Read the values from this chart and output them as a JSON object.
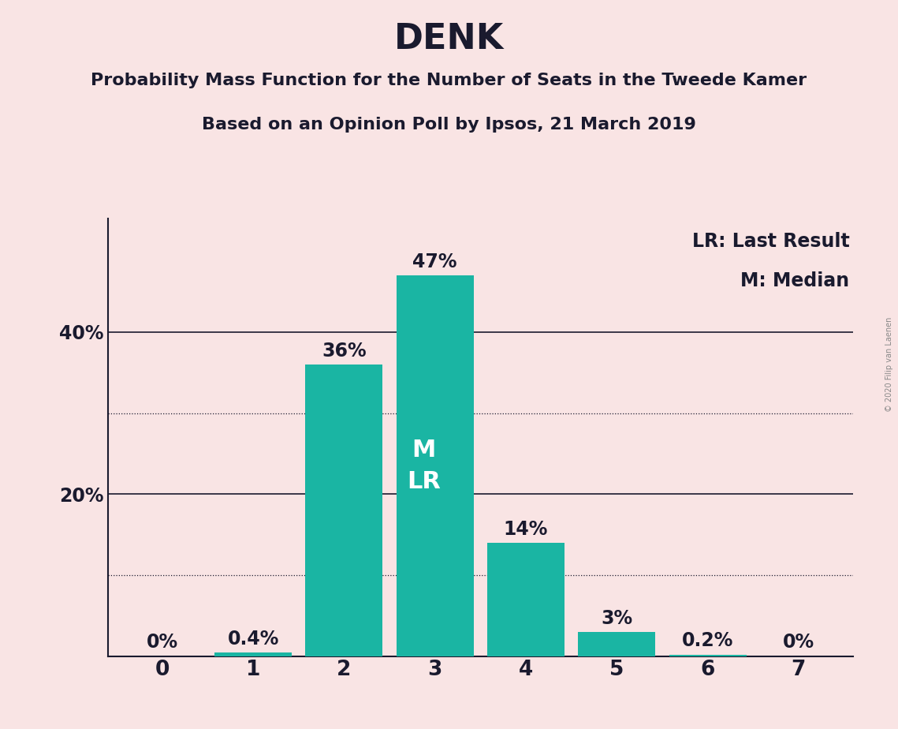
{
  "title": "DENK",
  "subtitle1": "Probability Mass Function for the Number of Seats in the Tweede Kamer",
  "subtitle2": "Based on an Opinion Poll by Ipsos, 21 March 2019",
  "categories": [
    0,
    1,
    2,
    3,
    4,
    5,
    6,
    7
  ],
  "values": [
    0.0,
    0.4,
    36.0,
    47.0,
    14.0,
    3.0,
    0.2,
    0.0
  ],
  "bar_color": "#1ab5a3",
  "background_color": "#f9e4e4",
  "bar_labels": [
    "0%",
    "0.4%",
    "36%",
    "47%",
    "14%",
    "3%",
    "0.2%",
    "0%"
  ],
  "median_bar": 3,
  "legend_lr": "LR: Last Result",
  "legend_m": "M: Median",
  "watermark": "© 2020 Filip van Laenen",
  "dotted_grid_values": [
    10,
    30
  ],
  "solid_grid_values": [
    20,
    40
  ],
  "title_fontsize": 32,
  "subtitle_fontsize": 16,
  "tick_fontsize": 17,
  "legend_fontsize": 17,
  "bar_label_fontsize": 17,
  "ml_fontsize": 22,
  "text_color": "#1a1a2e"
}
